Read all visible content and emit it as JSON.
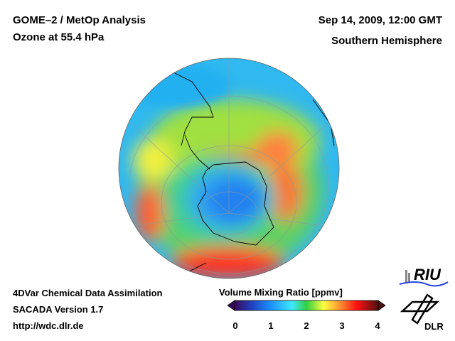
{
  "header": {
    "title_line1": "GOME–2 / MetOp Analysis",
    "title_line2": "Ozone at 55.4 hPa",
    "datetime": "Sep 14, 2009, 12:00 GMT",
    "region": "Southern Hemisphere"
  },
  "footer": {
    "line1": "4DVar Chemical Data Assimilation",
    "line2": "SACADA Version 1.7",
    "line3": "http://wdc.dlr.de"
  },
  "colorbar": {
    "title": "Volume Mixing Ratio [ppmv]",
    "min": 0,
    "max": 4,
    "ticks": [
      "0",
      "1",
      "2",
      "3",
      "4"
    ],
    "colors": [
      "#3a0a5a",
      "#1a5aff",
      "#40e0ff",
      "#30d040",
      "#ffff40",
      "#ff8030",
      "#ff1010",
      "#501010"
    ]
  },
  "logos": {
    "riu": "RIU",
    "dlr": "DLR"
  }
}
